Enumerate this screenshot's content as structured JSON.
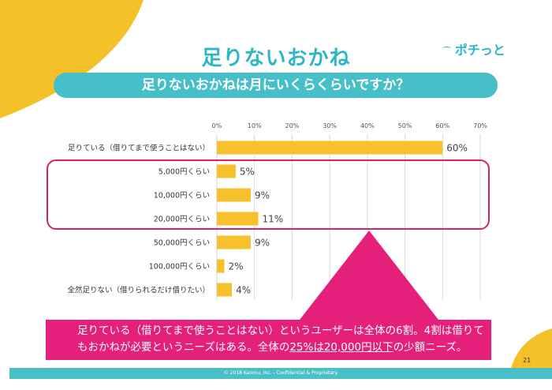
{
  "header": {
    "title": "足りないおかね",
    "subtitle": "足りないおかねは月にいくらくらいですか？",
    "logo": "ポチっと"
  },
  "chart_data": {
    "type": "bar",
    "orientation": "horizontal",
    "categories": [
      "足りている（借りてまで使うことはない）",
      "5,000円くらい",
      "10,000円くらい",
      "20,000円くらい",
      "50,000円くらい",
      "100,000円くらい",
      "全然足りない（借りられるだけ借りたい）"
    ],
    "values": [
      60,
      5,
      9,
      11,
      9,
      2,
      4
    ],
    "value_labels": [
      "60%",
      "5%",
      "9%",
      "11%",
      "9%",
      "2%",
      "4%"
    ],
    "xlim": [
      0,
      70
    ],
    "xticks": [
      "0%",
      "10%",
      "20%",
      "30%",
      "40%",
      "50%",
      "60%",
      "70%"
    ],
    "tick_values": [
      0,
      10,
      20,
      30,
      40,
      50,
      60,
      70
    ],
    "grid": true,
    "bar_color": "#f7c12e",
    "highlighted_categories": [
      "5,000円くらい",
      "10,000円くらい",
      "20,000円くらい"
    ]
  },
  "callout": {
    "line1": "足りている（借りてまで使うことはない）というユーザーは全体の6割。4割は借りて",
    "line2_pre": "もおかねが必要というニーズはある。全体の",
    "line2_underlined": "25%は20,000円以下",
    "line2_post": "の少額ニーズ。"
  },
  "footer": {
    "text": "© 2018 Kanmu, Inc. - Confidential & Proprietary",
    "page_number": "21"
  },
  "colors": {
    "accent_teal": "#2bb7c6",
    "accent_magenta": "#e5207a",
    "accent_yellow": "#f7c12e"
  }
}
